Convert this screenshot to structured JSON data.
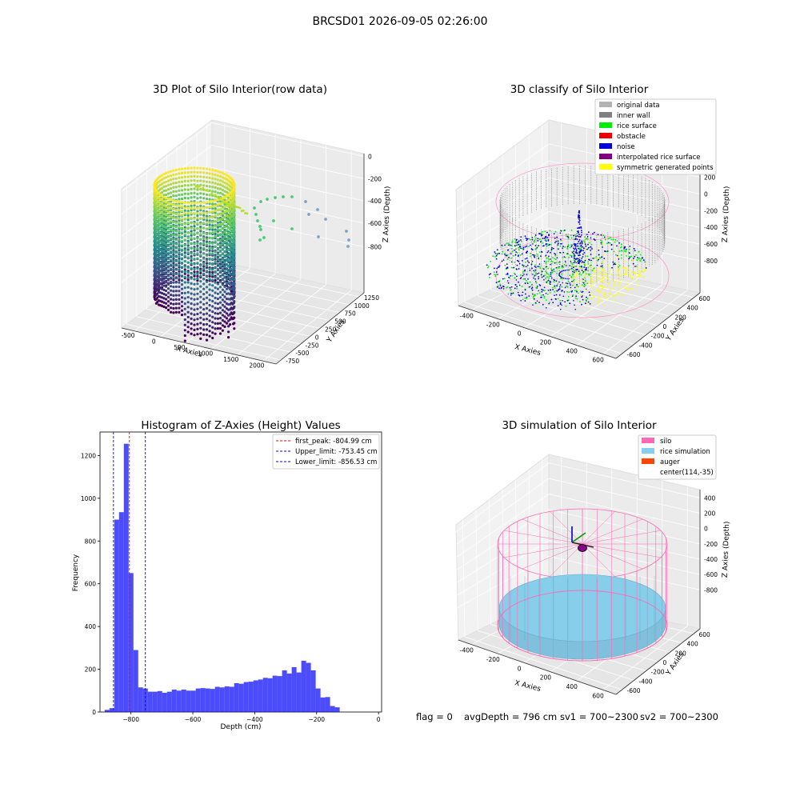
{
  "suptitle": "BRCSD01 2026-09-05 02:26:00",
  "status_line": {
    "flag": "flag = 0",
    "avg_depth": "avgDepth = 796 cm",
    "sv1": "sv1 = 700~2300",
    "sv2": "sv2 = 700~2300"
  },
  "plot1": {
    "title": "3D Plot of Silo Interior(row data)",
    "xlabel": "X Axies",
    "ylabel": "Y Axies",
    "zlabel": "Z Axies (Depth)",
    "xticks": [
      "-500",
      "0",
      "500",
      "1000",
      "1500",
      "2000"
    ],
    "yticks": [
      "-750",
      "-500",
      "-250",
      "0",
      "250",
      "500",
      "750",
      "1000",
      "1250"
    ],
    "zticks": [
      "-800",
      "-600",
      "-400",
      "-200",
      "0"
    ],
    "colors": {
      "low": "#3b1f6b",
      "mid": "#21918c",
      "high": "#e8e41c"
    }
  },
  "plot2": {
    "title": "3D classify of Silo Interior",
    "xlabel": "X Axies",
    "ylabel": "Y Axies",
    "zlabel": "Z Axies (Depth)",
    "xticks": [
      "-400",
      "-200",
      "0",
      "200",
      "400",
      "600"
    ],
    "yticks": [
      "-600",
      "-400",
      "-200",
      "0",
      "200",
      "400",
      "600"
    ],
    "zticks": [
      "-800",
      "-600",
      "-400",
      "-200",
      "0",
      "200"
    ],
    "legend": [
      {
        "label": "original data",
        "color": "#b3b3b3"
      },
      {
        "label": "inner wall",
        "color": "#808080"
      },
      {
        "label": "rice surface",
        "color": "#00ee00"
      },
      {
        "label": "obstacle",
        "color": "#ee0000"
      },
      {
        "label": "noise",
        "color": "#0000dd"
      },
      {
        "label": "interpolated rice surface",
        "color": "#800080"
      },
      {
        "label": "symmetric generated points",
        "color": "#ffff00"
      }
    ]
  },
  "plot3": {
    "title": "Histogram of Z-Axies (Height) Values",
    "xlabel": "Depth (cm)",
    "ylabel": "Frequency",
    "xticks": [
      -800,
      -600,
      -400,
      -200,
      0
    ],
    "yticks": [
      0,
      200,
      400,
      600,
      800,
      1000,
      1200
    ],
    "legend": [
      {
        "label": "first_peak: -804.99 cm",
        "color": "#ff0000"
      },
      {
        "label": "Upper_limit: -753.45 cm",
        "color": "#0000ff"
      },
      {
        "label": "Lower_limit: -856.53 cm",
        "color": "#0000ff"
      }
    ]
  },
  "chart_data": [
    {
      "type": "scatter",
      "title": "3D Plot of Silo Interior(row data)",
      "xlabel": "X Axies",
      "ylabel": "Y Axies",
      "zlabel": "Z Axies (Depth)",
      "xlim": [
        -600,
        2000
      ],
      "ylim": [
        -750,
        1400
      ],
      "zlim": [
        -900,
        0
      ],
      "colormap": "viridis"
    },
    {
      "type": "scatter",
      "title": "3D classify of Silo Interior",
      "xlabel": "X Axies",
      "ylabel": "Y Axies",
      "zlabel": "Z Axies (Depth)",
      "xlim": [
        -500,
        700
      ],
      "ylim": [
        -650,
        650
      ],
      "zlim": [
        -900,
        250
      ],
      "legend_position": "top-right"
    },
    {
      "type": "bar",
      "title": "Histogram of Z-Axies (Height) Values",
      "xlabel": "Depth (cm)",
      "ylabel": "Frequency",
      "xlim": [
        -900,
        10
      ],
      "ylim": [
        0,
        1310
      ],
      "bin_width": 15.5,
      "bin_start": -885,
      "values": [
        10,
        18,
        900,
        935,
        1255,
        650,
        290,
        115,
        110,
        95,
        95,
        98,
        90,
        95,
        105,
        100,
        105,
        100,
        100,
        110,
        112,
        110,
        108,
        118,
        115,
        120,
        118,
        135,
        132,
        140,
        142,
        148,
        152,
        160,
        158,
        170,
        168,
        195,
        180,
        210,
        185,
        240,
        230,
        195,
        110,
        68,
        70,
        28,
        22
      ],
      "vlines": [
        {
          "name": "first_peak",
          "x": -804.99,
          "color": "#ff0000"
        },
        {
          "name": "Upper_limit",
          "x": -753.45,
          "color": "#0000ff"
        },
        {
          "name": "Lower_limit",
          "x": -856.53,
          "color": "#0000ff"
        }
      ],
      "legend_position": "top-right"
    },
    {
      "type": "surface",
      "title": "3D simulation of Silo Interior",
      "xlabel": "X Axies",
      "ylabel": "Y Axies",
      "zlabel": "Z Axies (Depth)",
      "xlim": [
        -500,
        700
      ],
      "ylim": [
        -650,
        650
      ],
      "zlim": [
        -900,
        450
      ],
      "legend_position": "top-right"
    }
  ],
  "plot4": {
    "title": "3D simulation of Silo Interior",
    "xlabel": "X Axies",
    "ylabel": "Y Axies",
    "zlabel": "Z Axies (Depth)",
    "xticks": [
      "-400",
      "-200",
      "0",
      "200",
      "400",
      "600"
    ],
    "yticks": [
      "-600",
      "-400",
      "-200",
      "0",
      "200",
      "400",
      "600"
    ],
    "zticks": [
      "-800",
      "-600",
      "-400",
      "-200",
      "0",
      "200",
      "400"
    ],
    "legend": [
      {
        "label": "silo",
        "color": "#ff69b4"
      },
      {
        "label": "rice simulation",
        "color": "#87ceeb"
      },
      {
        "label": "auger",
        "color": "#ff4500"
      },
      {
        "label": "center(114,-35)",
        "color": ""
      }
    ]
  }
}
